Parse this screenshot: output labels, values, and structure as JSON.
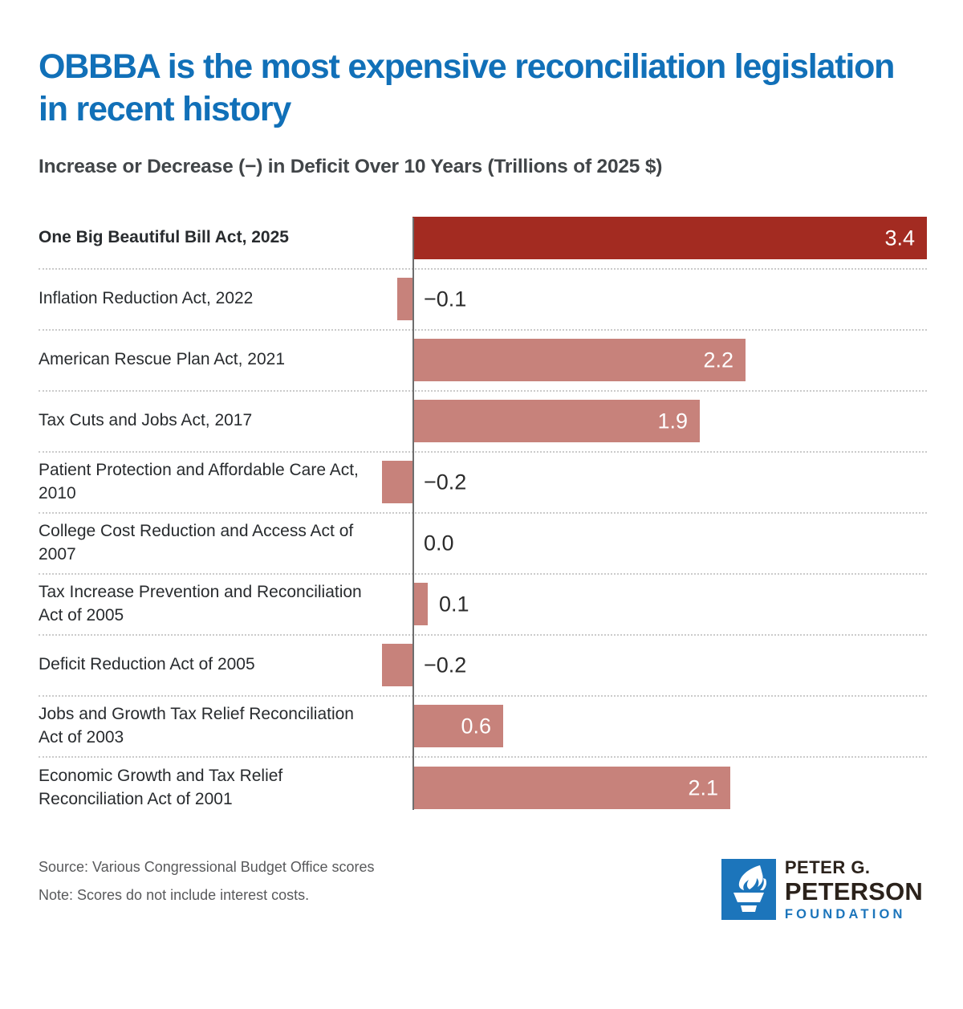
{
  "title": {
    "line1": "OBBBA is the most expensive reconciliation legislation",
    "line2": "in recent history"
  },
  "subtitle": "Increase or Decrease (−) in Deficit Over 10 Years (Trillions of 2025 $)",
  "chart_data": {
    "type": "bar",
    "orientation": "horizontal",
    "title": "Increase or Decrease (−) in Deficit Over 10 Years (Trillions of 2025 $)",
    "unit": "trillions of 2025 dollars",
    "categories": [
      "One Big Beautiful Bill Act, 2025",
      "Inflation Reduction Act, 2022",
      "American Rescue Plan Act, 2021",
      "Tax Cuts and Jobs Act, 2017",
      "Patient Protection and Affordable Care Act, 2010",
      "College Cost Reduction and Access Act of 2007",
      "Tax Increase Prevention and Reconciliation Act of 2005",
      "Deficit Reduction Act of 2005",
      "Jobs and Growth Tax Relief Reconciliation Act of 2003",
      "Economic Growth and Tax Relief Reconciliation Act of 2001"
    ],
    "values": [
      3.4,
      -0.1,
      2.2,
      1.9,
      -0.2,
      0.0,
      0.1,
      -0.2,
      0.6,
      2.1
    ],
    "value_labels": [
      "3.4",
      "−0.1",
      "2.2",
      "1.9",
      "−0.2",
      "0.0",
      "0.1",
      "−0.2",
      "0.6",
      "2.1"
    ],
    "xlim": [
      -0.25,
      3.4
    ],
    "grid": "dotted row separators",
    "legend": "none",
    "highlight_index": 0,
    "colors": {
      "highlight": "#A32B21",
      "default": "#C7827B",
      "axis": "#6E6E6E"
    }
  },
  "footer": {
    "source": "Source: Various Congressional Budget Office scores",
    "note": "Note: Scores do not include interest costs."
  },
  "logo": {
    "line1": "PETER G.",
    "line2": "PETERSON",
    "line3": "FOUNDATION",
    "brand_blue": "#1C75BB"
  }
}
